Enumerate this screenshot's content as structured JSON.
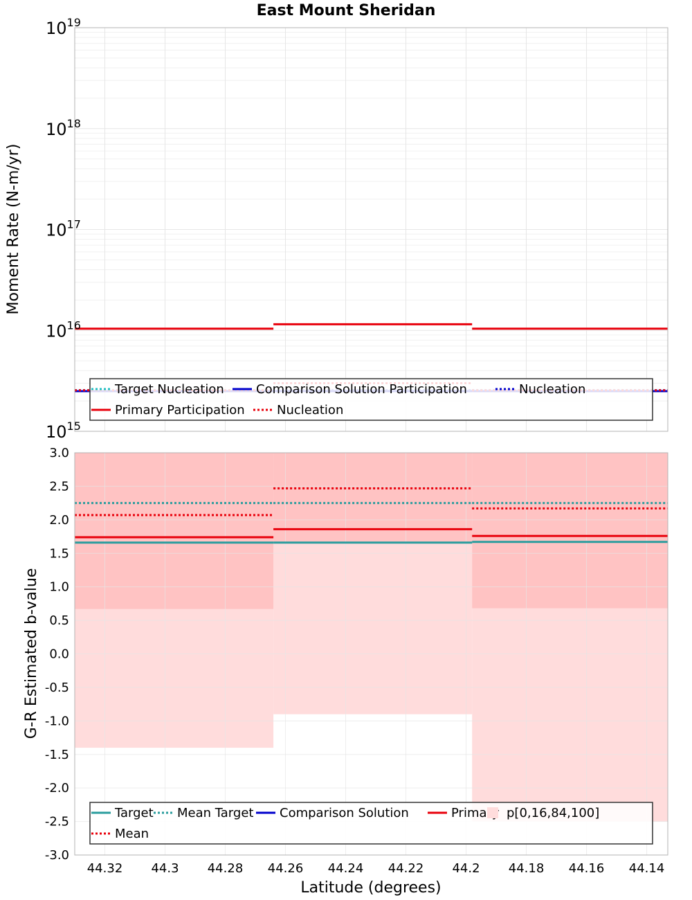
{
  "title": "East Mount Sheridan",
  "chart_data": [
    {
      "type": "line",
      "panel": "moment-rate",
      "ylabel": "Moment Rate (N-m/yr)",
      "yscale": "log",
      "ylim": [
        1000000000000000.0,
        1e+19
      ],
      "xlim": [
        44.33,
        44.133
      ],
      "x_reversed": true,
      "grid": true,
      "ytick_labels": [
        {
          "base": "10",
          "exp": "15",
          "value": 1000000000000000.0
        },
        {
          "base": "10",
          "exp": "16",
          "value": 1e+16
        },
        {
          "base": "10",
          "exp": "17",
          "value": 1e+17
        },
        {
          "base": "10",
          "exp": "18",
          "value": 1e+18
        },
        {
          "base": "10",
          "exp": "19",
          "value": 1e+19
        }
      ],
      "sections": [
        {
          "x0": 44.33,
          "x1": 44.264
        },
        {
          "x0": 44.264,
          "x1": 44.198
        },
        {
          "x0": 44.198,
          "x1": 44.133
        }
      ],
      "series": [
        {
          "key": "target_nucleation",
          "color": "#1fbfc2",
          "dash": "dot",
          "values": [
            2550000000000000.0,
            2550000000000000.0,
            2550000000000000.0
          ]
        },
        {
          "key": "comparison_participation",
          "color": "#0000cc",
          "dash": "solid",
          "values": [
            2500000000000000.0,
            2500000000000000.0,
            2500000000000000.0
          ]
        },
        {
          "key": "comparison_nucleation",
          "color": "#3333cc",
          "dash": "dot",
          "values": [
            2550000000000000.0,
            2550000000000000.0,
            2550000000000000.0
          ]
        },
        {
          "key": "primary_participation",
          "color": "#e8000b",
          "dash": "solid",
          "values": [
            1.04e+16,
            1.15e+16,
            1.04e+16
          ]
        },
        {
          "key": "primary_nucleation",
          "color": "#e8000b",
          "dash": "dot",
          "values": [
            2550000000000000.0,
            3000000000000000.0,
            2550000000000000.0
          ]
        }
      ],
      "legend": {
        "placement": "bottom",
        "entries": [
          {
            "label": "Target Nucleation",
            "color": "#1fbfc2",
            "dash": "dot"
          },
          {
            "label": "Comparison Solution Participation",
            "color": "#0000cc",
            "dash": "solid"
          },
          {
            "label": "Nucleation",
            "color": "#0000cc",
            "dash": "dot"
          },
          {
            "label": "Primary Participation",
            "color": "#e8000b",
            "dash": "solid"
          },
          {
            "label": "Nucleation",
            "color": "#e8000b",
            "dash": "dot"
          }
        ]
      }
    },
    {
      "type": "line",
      "panel": "b-value",
      "ylabel": "G-R Estimated b-value",
      "xlabel": "Latitude (degrees)",
      "ylim": [
        -3.0,
        3.0
      ],
      "xlim": [
        44.33,
        44.133
      ],
      "x_reversed": true,
      "grid": true,
      "yticks": [
        "-3.0",
        "-2.5",
        "-2.0",
        "-1.5",
        "-1.0",
        "-0.5",
        "0.0",
        "0.5",
        "1.0",
        "1.5",
        "2.0",
        "2.5",
        "3.0"
      ],
      "xticks": [
        "44.32",
        "44.3",
        "44.28",
        "44.26",
        "44.24",
        "44.22",
        "44.2",
        "44.18",
        "44.16",
        "44.14"
      ],
      "sections": [
        {
          "x0": 44.33,
          "x1": 44.264
        },
        {
          "x0": 44.264,
          "x1": 44.198
        },
        {
          "x0": 44.198,
          "x1": 44.133
        }
      ],
      "bands": {
        "p0_p100": [
          [
            -1.4,
            3.0
          ],
          [
            -0.9,
            3.0
          ],
          [
            -2.5,
            3.0
          ]
        ],
        "p16_p84": [
          [
            0.67,
            3.0
          ],
          [
            1.67,
            3.0
          ],
          [
            0.68,
            3.0
          ]
        ]
      },
      "series": [
        {
          "key": "target",
          "color": "#2a9d9e",
          "dash": "solid",
          "values": [
            1.66,
            1.66,
            1.67
          ]
        },
        {
          "key": "mean_target",
          "color": "#2a9d9e",
          "dash": "dot",
          "values": [
            2.25,
            2.25,
            2.25
          ]
        },
        {
          "key": "primary",
          "color": "#e8000b",
          "dash": "solid",
          "values": [
            1.74,
            1.86,
            1.76
          ]
        },
        {
          "key": "mean",
          "color": "#e8000b",
          "dash": "dot",
          "values": [
            2.07,
            2.47,
            2.17
          ]
        }
      ],
      "legend": {
        "placement": "bottom",
        "entries": [
          {
            "label": "Target",
            "color": "#2a9d9e",
            "dash": "solid"
          },
          {
            "label": "Mean Target",
            "color": "#2a9d9e",
            "dash": "dot"
          },
          {
            "label": "Comparison Solution",
            "color": "#0000cc",
            "dash": "solid"
          },
          {
            "label": "Primary",
            "color": "#e8000b",
            "dash": "solid"
          },
          {
            "label": "p[0,16,84,100]",
            "color": "#ffdcdc",
            "dash": "box"
          },
          {
            "label": "Mean",
            "color": "#e8000b",
            "dash": "dot"
          }
        ]
      }
    }
  ]
}
